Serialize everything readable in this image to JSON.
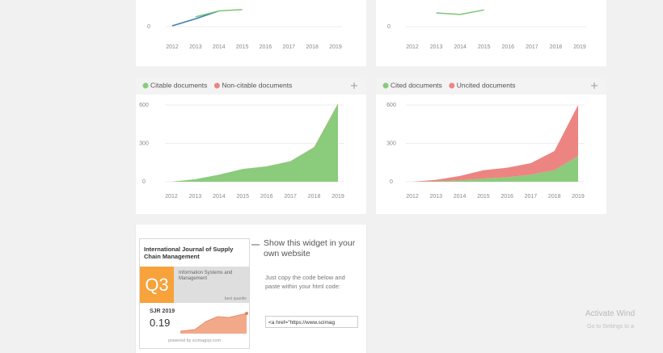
{
  "chart_data": [
    {
      "type": "line",
      "categories": [
        "2012",
        "2013",
        "2014",
        "2015",
        "2016",
        "2017",
        "2018",
        "2019"
      ],
      "series": [
        {
          "color": "#3b7fb5",
          "values": [
            0.04,
            0.4,
            0.8,
            null,
            null,
            null,
            null,
            null
          ]
        },
        {
          "color": "#7cc576",
          "values": [
            null,
            0.5,
            0.8,
            0.87,
            null,
            null,
            null,
            null
          ]
        }
      ],
      "ylim": [
        0,
        3
      ],
      "yticks": [
        0
      ],
      "grid": true
    },
    {
      "type": "line",
      "categories": [
        "2012",
        "2013",
        "2014",
        "2015",
        "2016",
        "2017",
        "2018",
        "2019"
      ],
      "series": [
        {
          "color": "#7cc576",
          "values": [
            null,
            0.7,
            0.62,
            0.85,
            null,
            null,
            null,
            null
          ]
        }
      ],
      "ylim": [
        0,
        3
      ],
      "yticks": [
        0
      ],
      "grid": true
    },
    {
      "type": "area",
      "stacked": true,
      "categories": [
        "2012",
        "2013",
        "2014",
        "2015",
        "2016",
        "2017",
        "2018",
        "2019"
      ],
      "series": [
        {
          "name": "Citable documents",
          "color": "#8bcb7c",
          "values": [
            0,
            20,
            55,
            100,
            120,
            160,
            270,
            610
          ]
        },
        {
          "name": "Non-citable documents",
          "color": "#ec8582",
          "values": [
            0,
            0,
            0,
            0,
            1,
            1,
            2,
            3
          ]
        }
      ],
      "ylim": [
        0,
        600
      ],
      "yticks": [
        0,
        300,
        600
      ],
      "grid": true
    },
    {
      "type": "area",
      "stacked": true,
      "categories": [
        "2012",
        "2013",
        "2014",
        "2015",
        "2016",
        "2017",
        "2018",
        "2019"
      ],
      "series": [
        {
          "name": "Cited documents",
          "color": "#8bcb7c",
          "values": [
            0,
            3,
            10,
            25,
            35,
            55,
            90,
            200
          ]
        },
        {
          "name": "Uncited documents",
          "color": "#ec8582",
          "values": [
            0,
            12,
            35,
            65,
            75,
            90,
            150,
            400
          ]
        }
      ],
      "ylim": [
        0,
        600
      ],
      "yticks": [
        0,
        300,
        600
      ],
      "grid": true
    }
  ],
  "widget": {
    "journal": "International Journal of Supply Chain Management",
    "quartile": "Q3",
    "category": "Information Systems and Management",
    "quartile_note": "best quartile",
    "indicator": "SJR 2019",
    "indicator_value": 0.19,
    "footer": "powered by scimagojr.com"
  },
  "embed": {
    "heading": "Show this widget in your own website",
    "instructions": "Just copy the code below and paste within your html code:",
    "code": "<a href=\"https://www.scimag"
  },
  "watermark": {
    "title": "Activate Wind",
    "subtitle": "Go to Settings to a"
  }
}
